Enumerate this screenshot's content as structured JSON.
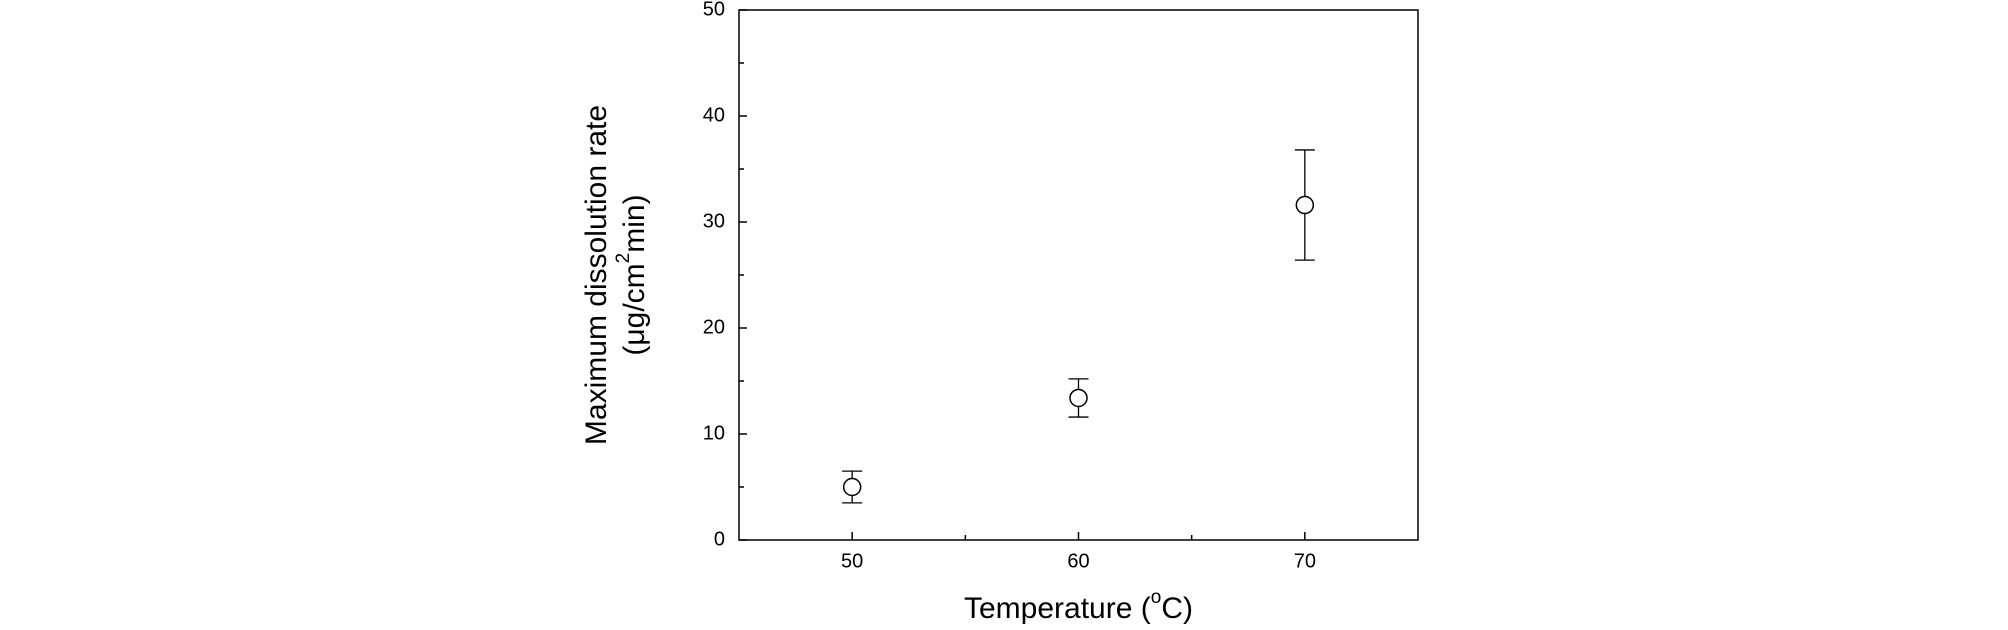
{
  "chart_data": {
    "type": "scatter",
    "x_label": {
      "text": "Temperature (",
      "sup": "o",
      "after": "C)"
    },
    "y_label": {
      "line1": "Maximum dissolution rate",
      "line2": {
        "text": "(μg/cm",
        "sup": "2",
        "after": "min)"
      }
    },
    "series": [
      {
        "x": [
          50,
          60,
          70
        ],
        "values": [
          5.0,
          13.4,
          31.6
        ],
        "errors": [
          1.5,
          1.8,
          5.2
        ],
        "color": "#000000"
      }
    ],
    "xlim": [
      45,
      75
    ],
    "xticks": [
      50,
      60,
      70
    ],
    "xminor": [
      55,
      65
    ],
    "ylim": [
      0,
      50
    ],
    "yticks": [
      0,
      10,
      20,
      30,
      40,
      50
    ],
    "yminor": [
      5,
      15,
      25,
      35,
      45
    ],
    "grid": false
  }
}
